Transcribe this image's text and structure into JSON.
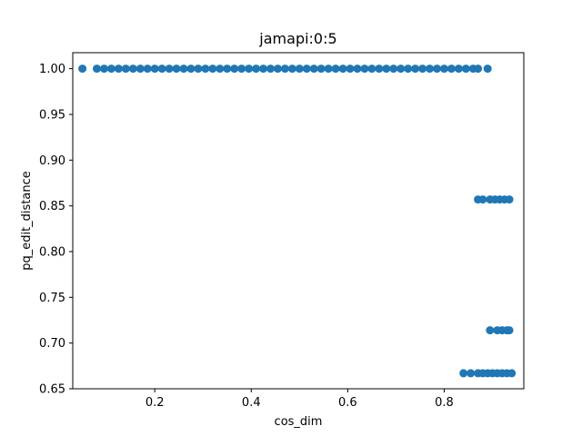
{
  "chart_data": {
    "type": "scatter",
    "title": "jamapi:0:5",
    "xlabel": "cos_dim",
    "ylabel": "pq_edit_distance",
    "xlim": [
      0.03,
      0.965
    ],
    "ylim": [
      0.65,
      1.0175
    ],
    "xticks": [
      "0.2",
      "0.4",
      "0.6",
      "0.8"
    ],
    "yticks": [
      "0.65",
      "0.70",
      "0.75",
      "0.80",
      "0.85",
      "0.90",
      "0.95",
      "1.00"
    ],
    "grid": false,
    "color": "#1f77b4",
    "series": [
      {
        "points": [
          [
            0.05,
            1.0
          ],
          [
            0.08,
            1.0
          ],
          [
            0.095,
            1.0
          ],
          [
            0.11,
            1.0
          ],
          [
            0.125,
            1.0
          ],
          [
            0.14,
            1.0
          ],
          [
            0.155,
            1.0
          ],
          [
            0.17,
            1.0
          ],
          [
            0.185,
            1.0
          ],
          [
            0.2,
            1.0
          ],
          [
            0.215,
            1.0
          ],
          [
            0.23,
            1.0
          ],
          [
            0.245,
            1.0
          ],
          [
            0.26,
            1.0
          ],
          [
            0.275,
            1.0
          ],
          [
            0.29,
            1.0
          ],
          [
            0.305,
            1.0
          ],
          [
            0.32,
            1.0
          ],
          [
            0.335,
            1.0
          ],
          [
            0.35,
            1.0
          ],
          [
            0.365,
            1.0
          ],
          [
            0.38,
            1.0
          ],
          [
            0.395,
            1.0
          ],
          [
            0.41,
            1.0
          ],
          [
            0.425,
            1.0
          ],
          [
            0.44,
            1.0
          ],
          [
            0.455,
            1.0
          ],
          [
            0.47,
            1.0
          ],
          [
            0.485,
            1.0
          ],
          [
            0.5,
            1.0
          ],
          [
            0.515,
            1.0
          ],
          [
            0.53,
            1.0
          ],
          [
            0.545,
            1.0
          ],
          [
            0.56,
            1.0
          ],
          [
            0.575,
            1.0
          ],
          [
            0.59,
            1.0
          ],
          [
            0.605,
            1.0
          ],
          [
            0.62,
            1.0
          ],
          [
            0.635,
            1.0
          ],
          [
            0.65,
            1.0
          ],
          [
            0.665,
            1.0
          ],
          [
            0.68,
            1.0
          ],
          [
            0.695,
            1.0
          ],
          [
            0.71,
            1.0
          ],
          [
            0.725,
            1.0
          ],
          [
            0.74,
            1.0
          ],
          [
            0.755,
            1.0
          ],
          [
            0.77,
            1.0
          ],
          [
            0.785,
            1.0
          ],
          [
            0.8,
            1.0
          ],
          [
            0.815,
            1.0
          ],
          [
            0.83,
            1.0
          ],
          [
            0.845,
            1.0
          ],
          [
            0.86,
            1.0
          ],
          [
            0.87,
            1.0
          ],
          [
            0.89,
            1.0
          ],
          [
            0.87,
            0.857
          ],
          [
            0.88,
            0.857
          ],
          [
            0.895,
            0.857
          ],
          [
            0.905,
            0.857
          ],
          [
            0.915,
            0.857
          ],
          [
            0.925,
            0.857
          ],
          [
            0.935,
            0.857
          ],
          [
            0.895,
            0.714
          ],
          [
            0.91,
            0.714
          ],
          [
            0.92,
            0.714
          ],
          [
            0.93,
            0.714
          ],
          [
            0.935,
            0.714
          ],
          [
            0.84,
            0.667
          ],
          [
            0.855,
            0.667
          ],
          [
            0.87,
            0.667
          ],
          [
            0.88,
            0.667
          ],
          [
            0.89,
            0.667
          ],
          [
            0.9,
            0.667
          ],
          [
            0.91,
            0.667
          ],
          [
            0.92,
            0.667
          ],
          [
            0.93,
            0.667
          ],
          [
            0.94,
            0.667
          ]
        ]
      }
    ]
  }
}
